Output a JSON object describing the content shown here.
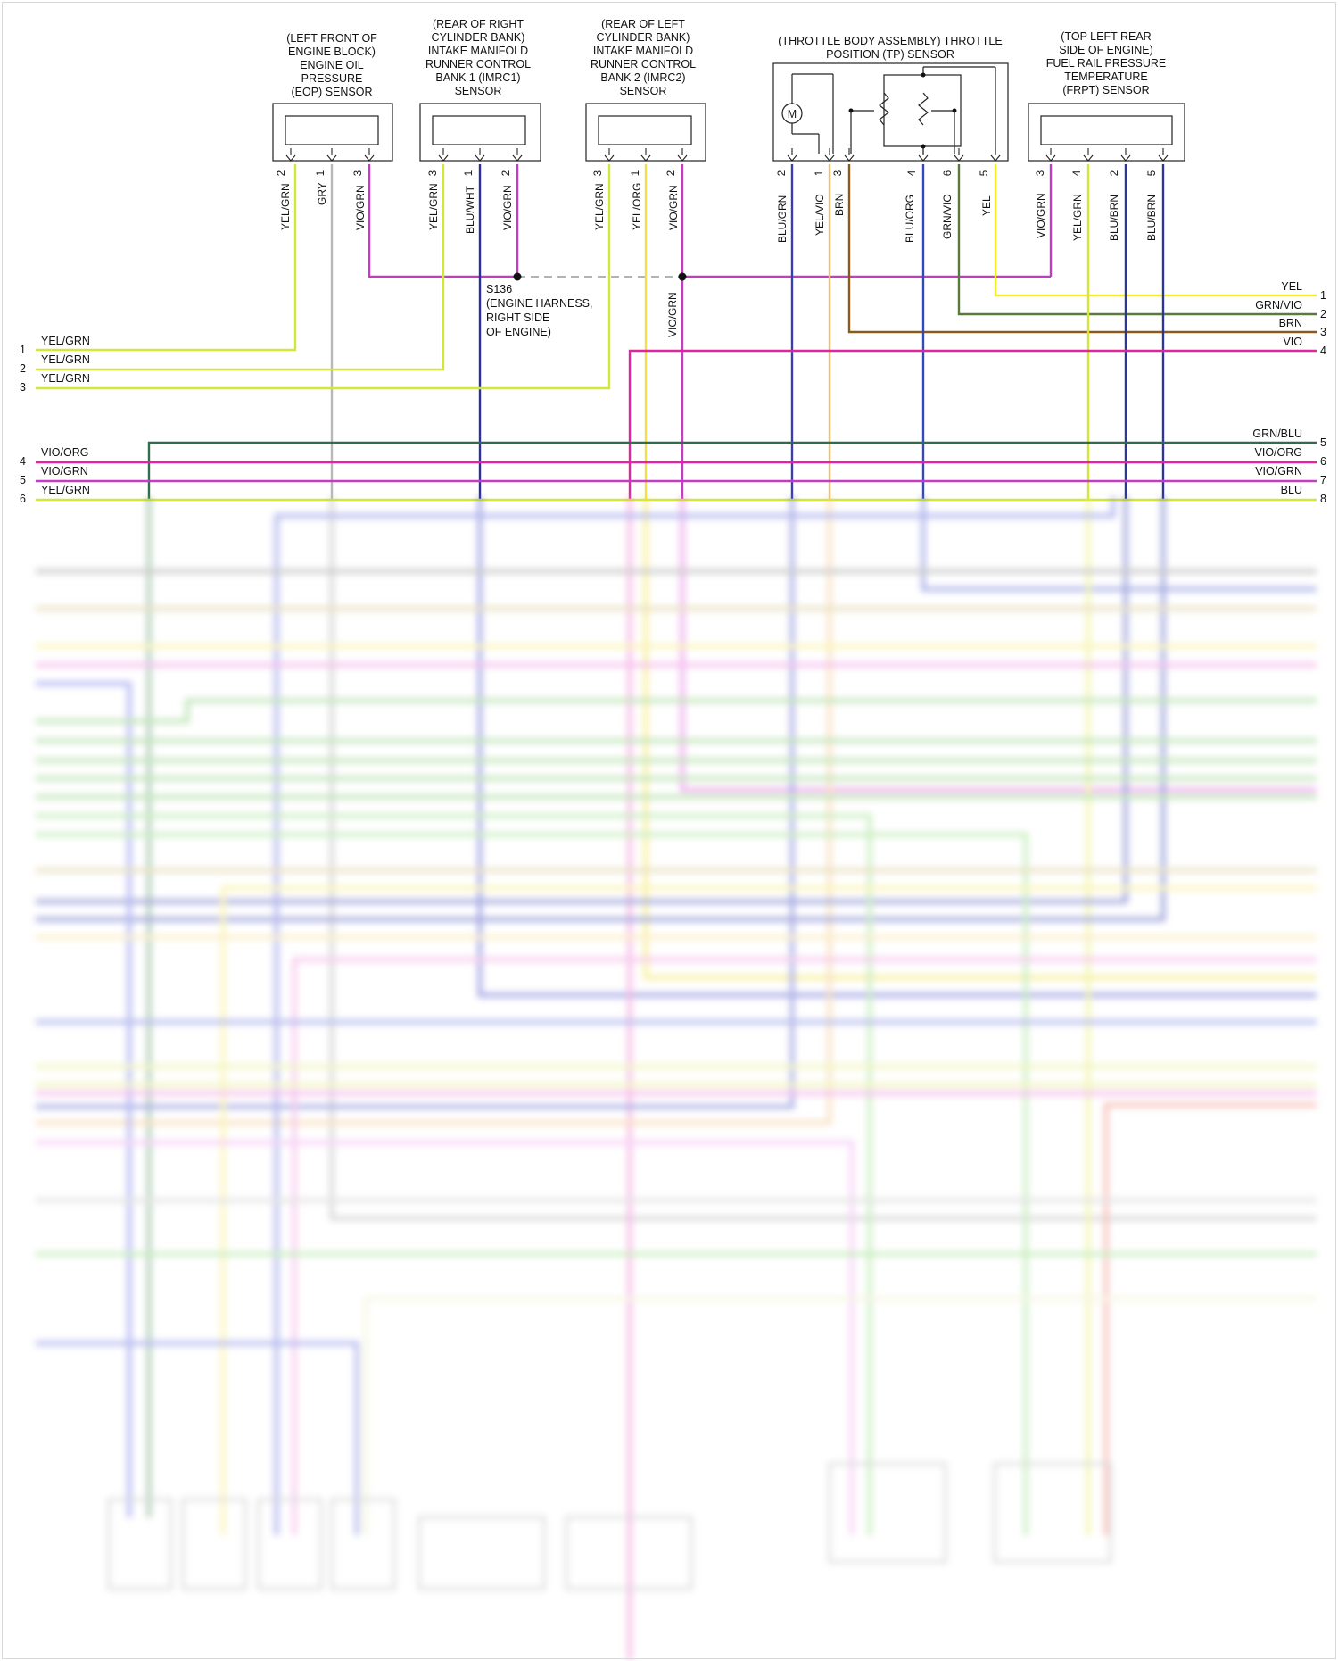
{
  "sensors": {
    "eop": {
      "title": [
        "(LEFT FRONT OF",
        "ENGINE BLOCK)",
        "ENGINE OIL",
        "PRESSURE",
        "(EOP) SENSOR"
      ],
      "pins": [
        "2",
        "1",
        "3"
      ],
      "wires": [
        "YEL/GRN",
        "GRY",
        "VIO/GRN"
      ]
    },
    "imrc1": {
      "title": [
        "(REAR OF RIGHT",
        "CYLINDER BANK)",
        "INTAKE MANIFOLD",
        "RUNNER CONTROL",
        "BANK 1 (IMRC1)",
        "SENSOR"
      ],
      "pins": [
        "3",
        "1",
        "2"
      ],
      "wires": [
        "YEL/GRN",
        "BLU/WHT",
        "VIO/GRN"
      ]
    },
    "imrc2": {
      "title": [
        "(REAR OF LEFT",
        "CYLINDER BANK)",
        "INTAKE MANIFOLD",
        "RUNNER CONTROL",
        "BANK 2 (IMRC2)",
        "SENSOR"
      ],
      "pins": [
        "3",
        "1",
        "2"
      ],
      "wires": [
        "YEL/GRN",
        "YEL/ORG",
        "VIO/GRN"
      ]
    },
    "tp": {
      "title": [
        "(THROTTLE BODY ASSEMBLY) THROTTLE",
        "POSITION (TP) SENSOR"
      ],
      "pins": [
        "2",
        "1",
        "3",
        "4",
        "6",
        "5"
      ],
      "wires": [
        "BLU/GRN",
        "YEL/VIO",
        "BRN",
        "BLU/ORG",
        "GRN/VIO",
        "YEL"
      ],
      "motor_label": "M"
    },
    "frpt": {
      "title": [
        "(TOP LEFT REAR",
        "SIDE OF ENGINE)",
        "FUEL RAIL PRESSURE",
        "TEMPERATURE",
        "(FRPT) SENSOR"
      ],
      "pins": [
        "3",
        "4",
        "2",
        "5"
      ],
      "wires": [
        "VIO/GRN",
        "YEL/GRN",
        "BLU/BRN",
        "BLU/BRN"
      ]
    }
  },
  "splice": {
    "label": [
      "S136",
      "(ENGINE HARNESS,",
      "RIGHT SIDE",
      "OF ENGINE)"
    ],
    "wire_below": "VIO/GRN"
  },
  "left_connector": [
    {
      "num": "1",
      "wire": "YEL/GRN"
    },
    {
      "num": "2",
      "wire": "YEL/GRN"
    },
    {
      "num": "3",
      "wire": "YEL/GRN"
    },
    {
      "num": "4",
      "wire": "VIO/ORG"
    },
    {
      "num": "5",
      "wire": "VIO/GRN"
    },
    {
      "num": "6",
      "wire": "YEL/GRN"
    }
  ],
  "right_connector": [
    {
      "num": "1",
      "wire": "YEL"
    },
    {
      "num": "2",
      "wire": "GRN/VIO"
    },
    {
      "num": "3",
      "wire": "BRN"
    },
    {
      "num": "4",
      "wire": "VIO"
    },
    {
      "num": "5",
      "wire": "GRN/BLU"
    },
    {
      "num": "6",
      "wire": "VIO/ORG"
    },
    {
      "num": "7",
      "wire": "VIO/GRN"
    },
    {
      "num": "8",
      "wire": "BLU"
    }
  ],
  "colors": {
    "yel_grn": "#d4e63a",
    "gry": "#b8b8b8",
    "vio_grn": "#c23cc4",
    "blu_wht": "#2b2f9e",
    "yel_org": "#f2e04a",
    "blu_grn": "#3a3fb0",
    "yel_vio": "#f2c070",
    "brn": "#8a5a18",
    "blu_org": "#3548b8",
    "grn_vio": "#5a7a3a",
    "yel": "#f5ec28",
    "blu_brn": "#2c3598",
    "vio": "#e0269e",
    "grn_blu": "#2e6e4a",
    "vio_org": "#e0269e",
    "blu": "#2a2fa8"
  }
}
